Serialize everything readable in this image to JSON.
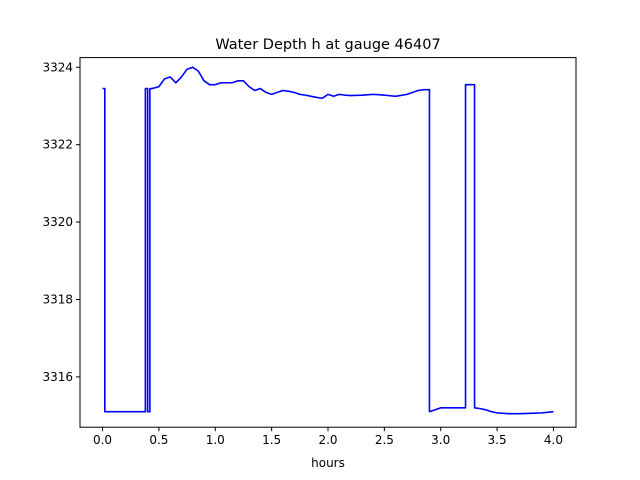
{
  "chart_data": {
    "type": "line",
    "title": "Water Depth h at gauge 46407",
    "xlabel": "hours",
    "ylabel": "",
    "xlim": [
      -0.2,
      4.2
    ],
    "ylim": [
      3314.7,
      3324.25
    ],
    "xticks": [
      0.0,
      0.5,
      1.0,
      1.5,
      2.0,
      2.5,
      3.0,
      3.5,
      4.0
    ],
    "xtick_labels": [
      "0.0",
      "0.5",
      "1.0",
      "1.5",
      "2.0",
      "2.5",
      "3.0",
      "3.5",
      "4.0"
    ],
    "yticks": [
      3316,
      3318,
      3320,
      3322,
      3324
    ],
    "ytick_labels": [
      "3316",
      "3318",
      "3320",
      "3322",
      "3324"
    ],
    "grid": false,
    "legend": false,
    "series": [
      {
        "color": "#0000ff",
        "x": [
          0.0,
          0.02,
          0.02,
          0.1,
          0.2,
          0.3,
          0.38,
          0.38,
          0.4,
          0.4,
          0.42,
          0.42,
          0.44,
          0.44,
          0.5,
          0.55,
          0.6,
          0.65,
          0.7,
          0.75,
          0.8,
          0.85,
          0.9,
          0.95,
          1.0,
          1.05,
          1.1,
          1.15,
          1.2,
          1.25,
          1.3,
          1.35,
          1.4,
          1.45,
          1.5,
          1.55,
          1.6,
          1.65,
          1.7,
          1.75,
          1.8,
          1.85,
          1.9,
          1.95,
          2.0,
          2.05,
          2.1,
          2.15,
          2.2,
          2.3,
          2.4,
          2.5,
          2.6,
          2.7,
          2.8,
          2.85,
          2.9,
          2.9,
          2.95,
          3.0,
          3.1,
          3.2,
          3.22,
          3.22,
          3.25,
          3.3,
          3.3,
          3.35,
          3.4,
          3.45,
          3.5,
          3.6,
          3.7,
          3.8,
          3.9,
          4.0
        ],
        "y": [
          3323.45,
          3323.45,
          3315.1,
          3315.1,
          3315.1,
          3315.1,
          3315.1,
          3323.45,
          3323.45,
          3315.1,
          3315.1,
          3323.45,
          3323.45,
          3323.45,
          3323.5,
          3323.7,
          3323.75,
          3323.6,
          3323.75,
          3323.95,
          3324.0,
          3323.9,
          3323.65,
          3323.55,
          3323.55,
          3323.6,
          3323.6,
          3323.6,
          3323.65,
          3323.65,
          3323.5,
          3323.4,
          3323.45,
          3323.35,
          3323.3,
          3323.35,
          3323.4,
          3323.38,
          3323.35,
          3323.3,
          3323.28,
          3323.25,
          3323.22,
          3323.2,
          3323.3,
          3323.25,
          3323.3,
          3323.28,
          3323.27,
          3323.28,
          3323.3,
          3323.28,
          3323.25,
          3323.3,
          3323.4,
          3323.42,
          3323.42,
          3315.1,
          3315.15,
          3315.2,
          3315.2,
          3315.2,
          3315.2,
          3323.55,
          3323.55,
          3323.55,
          3315.2,
          3315.18,
          3315.15,
          3315.1,
          3315.07,
          3315.05,
          3315.05,
          3315.06,
          3315.07,
          3315.1
        ]
      }
    ]
  }
}
